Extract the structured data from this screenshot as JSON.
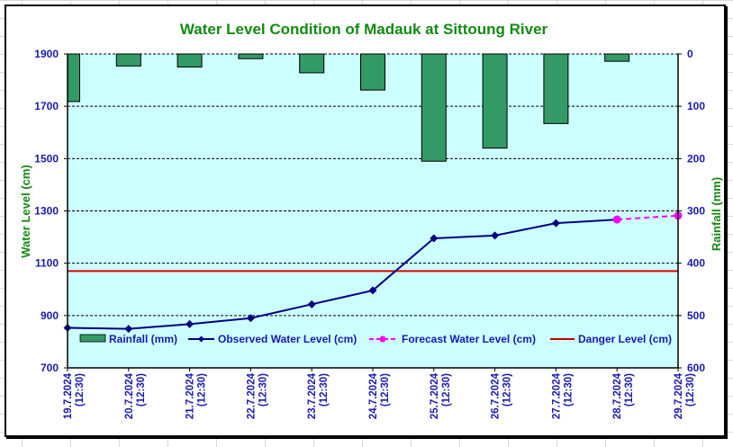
{
  "chart_data": {
    "type": "bar+line",
    "title": "Water Level Condition of Madauk at Sittoung River",
    "categories": [
      "19.7.2024",
      "20.7.2024",
      "21.7.2024",
      "22.7.2024",
      "23.7.2024",
      "24.7.2024",
      "25.7.2024",
      "26.7.2024",
      "27.7.2024",
      "28.7.2024",
      "29.7.2024"
    ],
    "category_sublabel": "(12:30)",
    "y_left": {
      "label": "Water Level (cm)",
      "range": [
        700,
        1900
      ],
      "ticks": [
        700,
        900,
        1100,
        1300,
        1500,
        1700,
        1900
      ]
    },
    "y_right": {
      "label": "Rainfall (mm)",
      "range": [
        0,
        600
      ],
      "reversed": true,
      "ticks": [
        0,
        100,
        200,
        300,
        400,
        500,
        600
      ]
    },
    "grid": "horizontal dashed",
    "legend_position": "bottom inside plot",
    "series": [
      {
        "name": "Rainfall (mm)",
        "type": "bar",
        "axis": "right",
        "color": "#339966",
        "values": [
          91,
          23,
          25,
          9,
          36,
          69,
          205,
          180,
          133,
          14,
          null
        ]
      },
      {
        "name": "Observed Water Level (cm)",
        "type": "line",
        "axis": "left",
        "color": "#000080",
        "marker": "diamond",
        "values": [
          853,
          849,
          867,
          890,
          943,
          996,
          1195,
          1206,
          1253,
          1267,
          null
        ]
      },
      {
        "name": "Forecast Water Level (cm)",
        "type": "line",
        "axis": "left",
        "color": "#ff00ff",
        "dashed": true,
        "marker": "circle",
        "values": [
          null,
          null,
          null,
          null,
          null,
          null,
          null,
          null,
          null,
          1267,
          1282
        ]
      },
      {
        "name": "Danger Level (cm)",
        "type": "line",
        "axis": "left",
        "color": "#dd0000",
        "constant": 1070
      }
    ]
  }
}
